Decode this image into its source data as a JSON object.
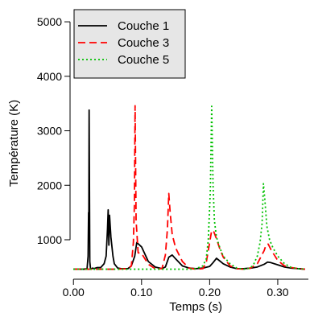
{
  "chart_data": {
    "type": "line",
    "xlabel": "Temps (s)",
    "ylabel": "Température (K)",
    "xlim": [
      -0.005,
      0.345
    ],
    "ylim": [
      350,
      5400
    ],
    "xticks": [
      0.0,
      0.1,
      0.2,
      0.3
    ],
    "xtick_labels": [
      "0.00",
      "0.10",
      "0.20",
      "0.30"
    ],
    "yticks": [
      1000,
      2000,
      3000,
      4000,
      5000
    ],
    "ytick_labels": [
      "1000",
      "2000",
      "3000",
      "4000",
      "5000"
    ],
    "grid": false,
    "legend_position": "top-left",
    "series": [
      {
        "name": "Couche 1",
        "color": "#000000",
        "dash": "solid",
        "x": [
          0.0,
          0.015,
          0.02,
          0.0215,
          0.0222,
          0.0225,
          0.023,
          0.024,
          0.025,
          0.026,
          0.028,
          0.03,
          0.035,
          0.04,
          0.045,
          0.048,
          0.05,
          0.051,
          0.052,
          0.053,
          0.055,
          0.058,
          0.06,
          0.065,
          0.07,
          0.08,
          0.085,
          0.09,
          0.093,
          0.1,
          0.11,
          0.12,
          0.13,
          0.135,
          0.14,
          0.145,
          0.15,
          0.16,
          0.17,
          0.18,
          0.19,
          0.2,
          0.205,
          0.21,
          0.215,
          0.22,
          0.23,
          0.24,
          0.25,
          0.26,
          0.27,
          0.28,
          0.285,
          0.29,
          0.3,
          0.31,
          0.32,
          0.33,
          0.34
        ],
        "y": [
          460,
          460,
          470,
          700,
          1500,
          1000,
          3380,
          600,
          480,
          460,
          480,
          470,
          490,
          490,
          560,
          700,
          1200,
          1550,
          900,
          1450,
          1050,
          700,
          560,
          480,
          470,
          470,
          520,
          700,
          950,
          870,
          600,
          500,
          470,
          500,
          680,
          720,
          650,
          520,
          480,
          470,
          480,
          510,
          580,
          660,
          610,
          560,
          500,
          470,
          470,
          480,
          500,
          550,
          590,
          580,
          540,
          500,
          480,
          470,
          460
        ]
      },
      {
        "name": "Couche 3",
        "color": "#ff0000",
        "dash": "dashed",
        "x": [
          0.0,
          0.03,
          0.06,
          0.08,
          0.085,
          0.088,
          0.0895,
          0.0905,
          0.092,
          0.095,
          0.1,
          0.11,
          0.12,
          0.13,
          0.135,
          0.138,
          0.14,
          0.142,
          0.145,
          0.15,
          0.16,
          0.17,
          0.18,
          0.19,
          0.195,
          0.2,
          0.203,
          0.206,
          0.21,
          0.215,
          0.22,
          0.23,
          0.24,
          0.25,
          0.26,
          0.27,
          0.275,
          0.28,
          0.283,
          0.286,
          0.29,
          0.295,
          0.3,
          0.31,
          0.32,
          0.33,
          0.34
        ],
        "y": [
          460,
          460,
          460,
          470,
          520,
          950,
          1650,
          3460,
          1350,
          760,
          750,
          550,
          470,
          470,
          720,
          1200,
          1850,
          1500,
          1100,
          850,
          600,
          480,
          460,
          470,
          580,
          950,
          1170,
          1150,
          1020,
          830,
          680,
          520,
          470,
          460,
          480,
          560,
          680,
          800,
          910,
          920,
          820,
          720,
          620,
          520,
          490,
          470,
          460
        ]
      },
      {
        "name": "Couche 5",
        "color": "#00c000",
        "dash": "dotted",
        "x": [
          0.0,
          0.05,
          0.1,
          0.15,
          0.17,
          0.18,
          0.19,
          0.195,
          0.198,
          0.201,
          0.203,
          0.205,
          0.207,
          0.21,
          0.215,
          0.22,
          0.23,
          0.24,
          0.25,
          0.26,
          0.265,
          0.27,
          0.274,
          0.277,
          0.279,
          0.281,
          0.284,
          0.288,
          0.293,
          0.3,
          0.31,
          0.32,
          0.33,
          0.34
        ],
        "y": [
          460,
          460,
          460,
          460,
          460,
          470,
          520,
          650,
          1000,
          1900,
          3450,
          2000,
          1350,
          1050,
          850,
          700,
          560,
          480,
          460,
          480,
          560,
          700,
          950,
          1300,
          2030,
          1750,
          1250,
          1000,
          850,
          700,
          560,
          490,
          470,
          460
        ]
      }
    ]
  }
}
